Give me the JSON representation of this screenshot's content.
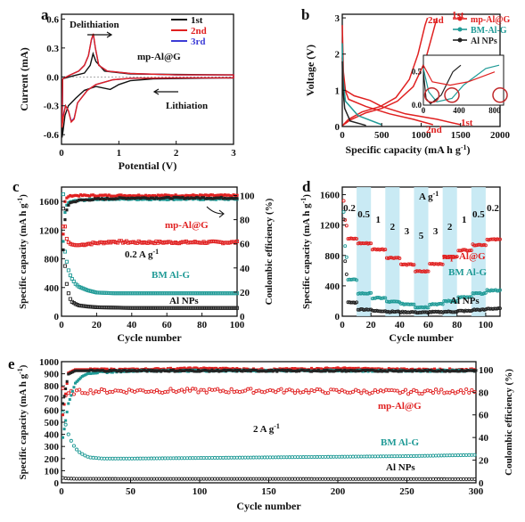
{
  "colors": {
    "mp": "#e02020",
    "bm": "#1f9a96",
    "al": "#222222",
    "first": "#111111",
    "second": "#e02020",
    "third": "#3b3bd6",
    "band": "#bfe6f2",
    "circle": "#c0282a"
  },
  "chart_data": [
    {
      "id": "a",
      "panel_label": "a",
      "type": "line",
      "xlabel": "Potential (V)",
      "ylabel": "Current (mA)",
      "xlim": [
        0,
        3
      ],
      "ylim": [
        -0.7,
        0.65
      ],
      "xticks": [
        "0",
        "1",
        "2",
        "3"
      ],
      "yticks": [
        "-0.6",
        "-0.3",
        "0.0",
        "0.3",
        "0.6"
      ],
      "legend": [
        "1st",
        "2nd",
        "3rd"
      ],
      "annotations": [
        "Delithiation",
        "Lithiation",
        "mp-Al@G"
      ]
    },
    {
      "id": "b",
      "panel_label": "b",
      "type": "line",
      "xlabel": "Specific capacity (mA h g",
      "xlabel_sup": "-1",
      "xlabel_end": ")",
      "ylabel": "Voltage (V)",
      "xlim": [
        0,
        2000
      ],
      "ylim": [
        0,
        3.1
      ],
      "xticks": [
        "0",
        "500",
        "1000",
        "1500",
        "2000"
      ],
      "yticks": [
        "0",
        "1",
        "2",
        "3"
      ],
      "legend": [
        "mp-Al@G",
        "BM-Al-G",
        "Al NPs"
      ],
      "annotations": [
        "2nd",
        "1st",
        "2nd",
        "1st"
      ],
      "inset": {
        "xticks": [
          "0",
          "400",
          "800"
        ],
        "yticks": [
          "0.0",
          "0.5"
        ]
      }
    },
    {
      "id": "c",
      "panel_label": "c",
      "type": "scatter",
      "xlabel": "Cycle number",
      "ylabel": "Specific capacity (mA h g",
      "ylabel_sup": "-1",
      "ylabel_end": ")",
      "y2label": "Coulombic efficiency (%)",
      "xlim": [
        0,
        100
      ],
      "ylim": [
        0,
        1800
      ],
      "y2lim": [
        0,
        107
      ],
      "xticks": [
        "0",
        "20",
        "40",
        "60",
        "80",
        "100"
      ],
      "yticks": [
        "0",
        "400",
        "800",
        "1200",
        "1600"
      ],
      "y2ticks": [
        "0",
        "20",
        "40",
        "60",
        "80",
        "100"
      ],
      "series_labels": [
        "mp-Al@G",
        "BM Al-G",
        "Al NPs"
      ],
      "rate_label": "0.2 A g",
      "rate_sup": "-1",
      "series": [
        {
          "name": "mp-Al@G",
          "x": [
            2,
            3,
            4,
            5,
            6,
            8,
            10,
            15,
            20,
            30,
            40,
            50,
            60,
            70,
            80,
            90,
            100
          ],
          "values": [
            1250,
            1080,
            1030,
            1010,
            1000,
            990,
            990,
            1010,
            1020,
            1040,
            1030,
            1030,
            1030,
            1030,
            1030,
            1030,
            1030
          ]
        },
        {
          "name": "BM Al-G",
          "x": [
            1,
            2,
            3,
            4,
            5,
            6,
            8,
            10,
            15,
            20,
            30,
            40,
            60,
            80,
            100
          ],
          "values": [
            1700,
            900,
            760,
            640,
            570,
            520,
            450,
            410,
            360,
            330,
            320,
            320,
            320,
            320,
            320
          ]
        },
        {
          "name": "Al NPs",
          "x": [
            1,
            2,
            3,
            4,
            5,
            6,
            8,
            10,
            15,
            20,
            30,
            40,
            60,
            80,
            100
          ],
          "values": [
            1500,
            700,
            450,
            320,
            240,
            200,
            170,
            150,
            135,
            125,
            120,
            115,
            115,
            115,
            115
          ]
        },
        {
          "name": "CE mp-Al@G",
          "axis": "right",
          "x": [
            1,
            2,
            3,
            4,
            5,
            10,
            20,
            40,
            60,
            80,
            100
          ],
          "values": [
            68,
            95,
            98,
            99,
            100,
            100,
            100,
            100,
            100,
            100,
            100
          ]
        },
        {
          "name": "CE BM Al-G",
          "axis": "right",
          "x": [
            1,
            2,
            3,
            4,
            5,
            10,
            20,
            40,
            60,
            80,
            100
          ],
          "values": [
            62,
            86,
            92,
            94,
            95,
            96,
            97,
            97,
            97,
            97,
            97
          ]
        },
        {
          "name": "CE Al NPs",
          "axis": "right",
          "x": [
            1,
            2,
            3,
            4,
            5,
            10,
            20,
            40,
            60,
            80,
            100
          ],
          "values": [
            55,
            80,
            88,
            92,
            94,
            96,
            97,
            98,
            98,
            98,
            98
          ]
        }
      ]
    },
    {
      "id": "d",
      "panel_label": "d",
      "type": "scatter",
      "xlabel": "Cycle number",
      "ylabel": "Specific capacity (mA h g",
      "ylabel_sup": "-1",
      "ylabel_end": ")",
      "xlim": [
        0,
        110
      ],
      "ylim": [
        0,
        1700
      ],
      "xticks": [
        "0",
        "20",
        "40",
        "60",
        "80",
        "100"
      ],
      "yticks": [
        "0",
        "400",
        "800",
        "1200",
        "1600"
      ],
      "unit_label": "A g",
      "unit_sup": "-1",
      "rates": [
        "0.2",
        "0.5",
        "1",
        "2",
        "3",
        "5",
        "3",
        "2",
        "1",
        "0.5",
        "0.2"
      ],
      "rate_ranges": [
        [
          0,
          10
        ],
        [
          10,
          20
        ],
        [
          20,
          30
        ],
        [
          30,
          40
        ],
        [
          40,
          50
        ],
        [
          50,
          60
        ],
        [
          60,
          70
        ],
        [
          70,
          80
        ],
        [
          80,
          90
        ],
        [
          90,
          100
        ],
        [
          100,
          110
        ]
      ],
      "series_labels": [
        "mp-Al@G",
        "BM Al-G",
        "Al NPs"
      ],
      "series": [
        {
          "name": "mp-Al@G",
          "values_per_step": [
            1020,
            960,
            880,
            770,
            680,
            590,
            690,
            780,
            870,
            940,
            1010
          ]
        },
        {
          "name": "BM Al-G",
          "values_per_step": [
            480,
            300,
            240,
            190,
            160,
            120,
            160,
            200,
            250,
            300,
            340
          ]
        },
        {
          "name": "Al NPs",
          "values_per_step": [
            180,
            90,
            70,
            60,
            55,
            50,
            55,
            60,
            70,
            85,
            100
          ]
        }
      ]
    },
    {
      "id": "e",
      "panel_label": "e",
      "type": "scatter",
      "xlabel": "Cycle number",
      "ylabel": "Specific capacity (mA h g",
      "ylabel_sup": "-1",
      "ylabel_end": ")",
      "y2label": "Coulombic efficiency (%)",
      "xlim": [
        0,
        300
      ],
      "ylim": [
        0,
        1000
      ],
      "y2lim": [
        0,
        107
      ],
      "xticks": [
        "0",
        "50",
        "100",
        "150",
        "200",
        "250",
        "300"
      ],
      "yticks": [
        "0",
        "100",
        "200",
        "300",
        "400",
        "500",
        "600",
        "700",
        "800",
        "900",
        "1000"
      ],
      "y2ticks": [
        "0",
        "20",
        "40",
        "60",
        "80",
        "100"
      ],
      "series_labels": [
        "mp-Al@G",
        "BM Al-G",
        "Al NPs"
      ],
      "rate_label": "2 A g",
      "rate_sup": "-1",
      "series": [
        {
          "name": "mp-Al@G",
          "x": [
            1,
            3,
            5,
            10,
            20,
            50,
            100,
            150,
            200,
            250,
            300
          ],
          "values": [
            780,
            720,
            740,
            750,
            755,
            760,
            760,
            760,
            755,
            750,
            760
          ]
        },
        {
          "name": "BM Al-G",
          "x": [
            1,
            3,
            5,
            8,
            12,
            16,
            20,
            30,
            50,
            100,
            150,
            200,
            250,
            300
          ],
          "values": [
            580,
            480,
            400,
            320,
            260,
            230,
            210,
            200,
            200,
            205,
            210,
            215,
            220,
            230
          ]
        },
        {
          "name": "Al NPs",
          "x": [
            1,
            5,
            10,
            50,
            100,
            150,
            200,
            250,
            300
          ],
          "values": [
            40,
            35,
            33,
            32,
            32,
            32,
            31,
            31,
            30
          ]
        },
        {
          "name": "CE mp-Al@G",
          "axis": "right",
          "x": [
            1,
            5,
            10,
            50,
            100,
            150,
            200,
            250,
            300
          ],
          "values": [
            60,
            97,
            100,
            100,
            101,
            100,
            101,
            100,
            100
          ]
        },
        {
          "name": "CE BM Al-G",
          "axis": "right",
          "x": [
            1,
            5,
            10,
            15,
            20,
            50,
            100,
            150,
            200,
            250,
            300
          ],
          "values": [
            40,
            70,
            88,
            94,
            97,
            99,
            99,
            99,
            99,
            99,
            99
          ]
        },
        {
          "name": "CE Al NPs",
          "axis": "right",
          "x": [
            1,
            5,
            10,
            50,
            100,
            150,
            200,
            250,
            300
          ],
          "values": [
            70,
            96,
            99,
            99,
            99,
            99,
            99,
            99,
            99
          ]
        }
      ]
    }
  ]
}
